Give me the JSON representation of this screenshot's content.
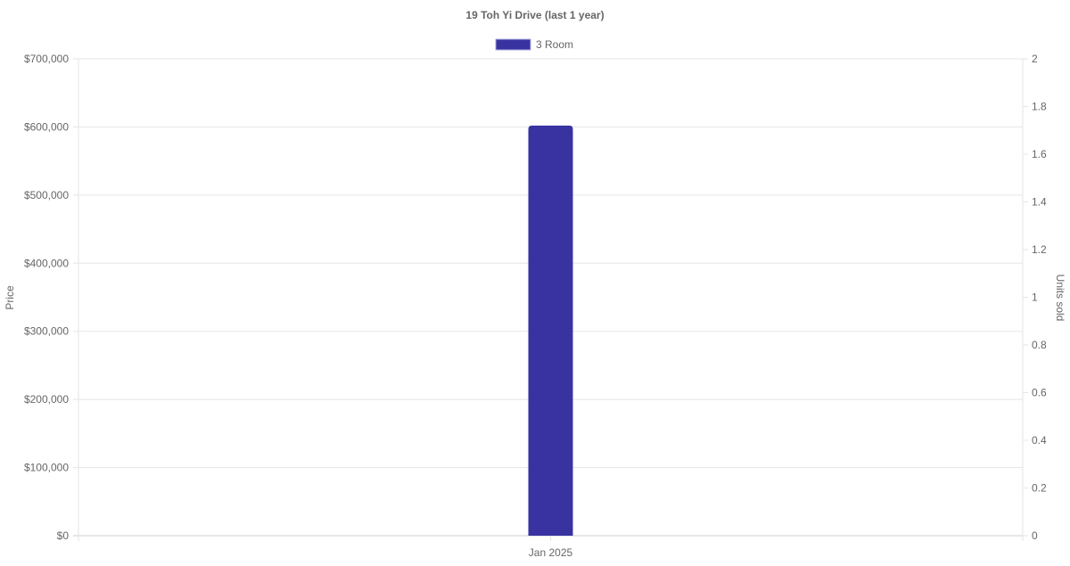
{
  "chart_data": {
    "type": "bar",
    "title": "19 Toh Yi Drive (last 1 year)",
    "categories": [
      "Jan 2025"
    ],
    "series": [
      {
        "name": "3 Room",
        "values": [
          602000
        ],
        "color": "#3833a0"
      }
    ],
    "ylabel": "Price",
    "ylim": [
      0,
      700000
    ],
    "yticks": [
      "$0",
      "$100,000",
      "$200,000",
      "$300,000",
      "$400,000",
      "$500,000",
      "$600,000",
      "$700,000"
    ],
    "y2label": "Units sold",
    "y2lim": [
      0,
      2
    ],
    "y2ticks": [
      "0",
      "0.2",
      "0.4",
      "0.6",
      "0.8",
      "1",
      "1.2",
      "1.4",
      "1.6",
      "1.8",
      "2"
    ],
    "grid": true,
    "legend": "top"
  }
}
